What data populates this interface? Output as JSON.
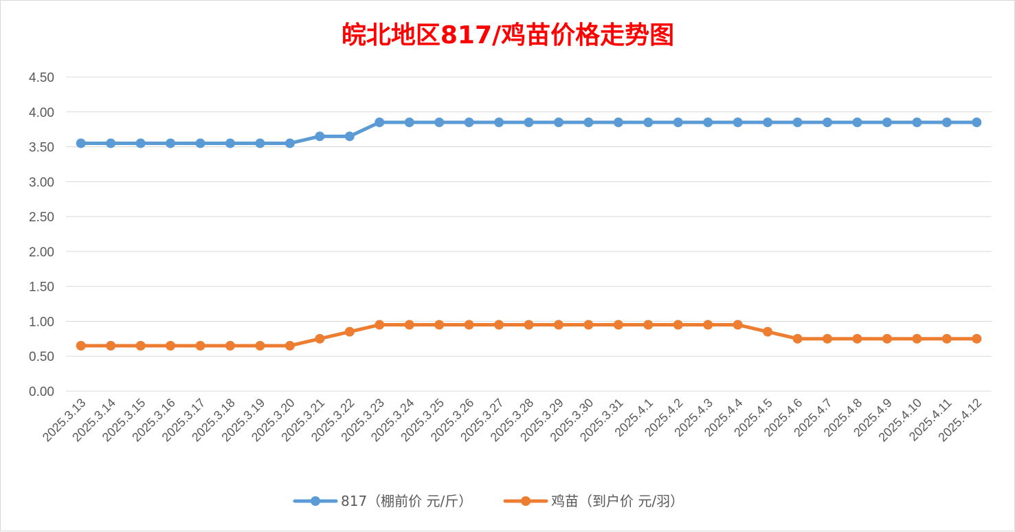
{
  "chart_data": {
    "type": "line",
    "title": "皖北地区817/鸡苗价格走势图",
    "categories": [
      "2025.3.13",
      "2025.3.14",
      "2025.3.15",
      "2025.3.16",
      "2025.3.17",
      "2025.3.18",
      "2025.3.19",
      "2025.3.20",
      "2025.3.21",
      "2025.3.22",
      "2025.3.23",
      "2025.3.24",
      "2025.3.25",
      "2025.3.26",
      "2025.3.27",
      "2025.3.28",
      "2025.3.29",
      "2025.3.30",
      "2025.3.31",
      "2025.4.1",
      "2025.4.2",
      "2025.4.3",
      "2025.4.4",
      "2025.4.5",
      "2025.4.6",
      "2025.4.7",
      "2025.4.8",
      "2025.4.9",
      "2025.4.10",
      "2025.4.11",
      "2025.4.12"
    ],
    "series": [
      {
        "name": "817（棚前价 元/斤）",
        "color": "#5b9bd5",
        "values": [
          3.55,
          3.55,
          3.55,
          3.55,
          3.55,
          3.55,
          3.55,
          3.55,
          3.65,
          3.65,
          3.85,
          3.85,
          3.85,
          3.85,
          3.85,
          3.85,
          3.85,
          3.85,
          3.85,
          3.85,
          3.85,
          3.85,
          3.85,
          3.85,
          3.85,
          3.85,
          3.85,
          3.85,
          3.85,
          3.85,
          3.85
        ]
      },
      {
        "name": "鸡苗（到户价 元/羽）",
        "color": "#ed7d31",
        "values": [
          0.65,
          0.65,
          0.65,
          0.65,
          0.65,
          0.65,
          0.65,
          0.65,
          0.75,
          0.85,
          0.95,
          0.95,
          0.95,
          0.95,
          0.95,
          0.95,
          0.95,
          0.95,
          0.95,
          0.95,
          0.95,
          0.95,
          0.95,
          0.85,
          0.75,
          0.75,
          0.75,
          0.75,
          0.75,
          0.75,
          0.75
        ]
      }
    ],
    "ylim": [
      0,
      4.5
    ],
    "yticks": [
      "0.00",
      "0.50",
      "1.00",
      "1.50",
      "2.00",
      "2.50",
      "3.00",
      "3.50",
      "4.00",
      "4.50"
    ],
    "grid": true,
    "legend_position": "bottom",
    "xlabel": "",
    "ylabel": ""
  }
}
